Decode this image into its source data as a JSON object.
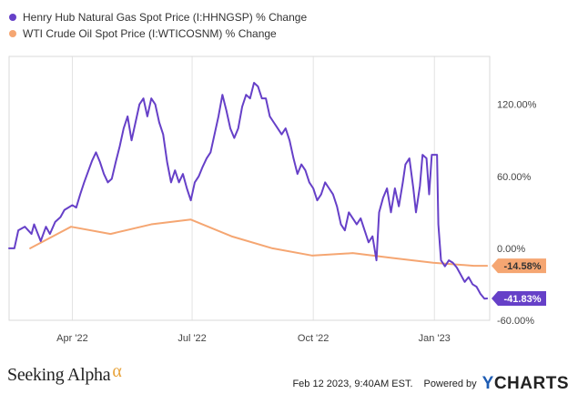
{
  "chart_data": {
    "type": "line",
    "x_type": "date",
    "xlim": [
      "2022-02-12",
      "2023-02-12"
    ],
    "ylim": [
      -60,
      160
    ],
    "y_unit": "%",
    "grid": "vertical",
    "y_ticks": [
      {
        "value": 120,
        "label": "120.00%"
      },
      {
        "value": 60,
        "label": "60.00%"
      },
      {
        "value": 0,
        "label": "0.00%"
      },
      {
        "value": -60,
        "label": "-60.00%"
      }
    ],
    "x_ticks": [
      {
        "date": "2022-04-01",
        "label": "Apr '22"
      },
      {
        "date": "2022-07-01",
        "label": "Jul '22"
      },
      {
        "date": "2022-10-01",
        "label": "Oct '22"
      },
      {
        "date": "2023-01-01",
        "label": "Jan '23"
      }
    ],
    "series": [
      {
        "name": "Henry Hub Natural Gas Spot Price (I:HHNGSP) % Change",
        "color": "#6640c8",
        "end_label": "-41.83%",
        "points": [
          [
            "2022-02-12",
            0
          ],
          [
            "2022-02-16",
            0
          ],
          [
            "2022-02-19",
            15
          ],
          [
            "2022-02-24",
            18
          ],
          [
            "2022-03-01",
            12
          ],
          [
            "2022-03-03",
            20
          ],
          [
            "2022-03-08",
            6
          ],
          [
            "2022-03-12",
            18
          ],
          [
            "2022-03-15",
            12
          ],
          [
            "2022-03-19",
            22
          ],
          [
            "2022-03-23",
            26
          ],
          [
            "2022-03-26",
            32
          ],
          [
            "2022-03-29",
            34
          ],
          [
            "2022-04-01",
            36
          ],
          [
            "2022-04-04",
            34
          ],
          [
            "2022-04-07",
            45
          ],
          [
            "2022-04-10",
            55
          ],
          [
            "2022-04-13",
            64
          ],
          [
            "2022-04-16",
            73
          ],
          [
            "2022-04-19",
            80
          ],
          [
            "2022-04-22",
            72
          ],
          [
            "2022-04-25",
            62
          ],
          [
            "2022-04-28",
            55
          ],
          [
            "2022-05-01",
            58
          ],
          [
            "2022-05-04",
            72
          ],
          [
            "2022-05-07",
            85
          ],
          [
            "2022-05-10",
            100
          ],
          [
            "2022-05-13",
            110
          ],
          [
            "2022-05-16",
            90
          ],
          [
            "2022-05-19",
            105
          ],
          [
            "2022-05-22",
            120
          ],
          [
            "2022-05-25",
            125
          ],
          [
            "2022-05-28",
            110
          ],
          [
            "2022-05-31",
            125
          ],
          [
            "2022-06-03",
            120
          ],
          [
            "2022-06-06",
            105
          ],
          [
            "2022-06-09",
            95
          ],
          [
            "2022-06-12",
            72
          ],
          [
            "2022-06-15",
            55
          ],
          [
            "2022-06-18",
            65
          ],
          [
            "2022-06-21",
            55
          ],
          [
            "2022-06-24",
            62
          ],
          [
            "2022-06-27",
            50
          ],
          [
            "2022-06-30",
            40
          ],
          [
            "2022-07-03",
            55
          ],
          [
            "2022-07-06",
            60
          ],
          [
            "2022-07-09",
            68
          ],
          [
            "2022-07-12",
            75
          ],
          [
            "2022-07-15",
            80
          ],
          [
            "2022-07-18",
            95
          ],
          [
            "2022-07-21",
            110
          ],
          [
            "2022-07-24",
            128
          ],
          [
            "2022-07-27",
            115
          ],
          [
            "2022-07-30",
            100
          ],
          [
            "2022-08-02",
            92
          ],
          [
            "2022-08-05",
            100
          ],
          [
            "2022-08-08",
            118
          ],
          [
            "2022-08-11",
            128
          ],
          [
            "2022-08-14",
            125
          ],
          [
            "2022-08-17",
            138
          ],
          [
            "2022-08-20",
            135
          ],
          [
            "2022-08-23",
            125
          ],
          [
            "2022-08-26",
            125
          ],
          [
            "2022-08-29",
            110
          ],
          [
            "2022-09-01",
            105
          ],
          [
            "2022-09-04",
            100
          ],
          [
            "2022-09-07",
            95
          ],
          [
            "2022-09-10",
            100
          ],
          [
            "2022-09-13",
            90
          ],
          [
            "2022-09-16",
            75
          ],
          [
            "2022-09-19",
            62
          ],
          [
            "2022-09-22",
            70
          ],
          [
            "2022-09-25",
            65
          ],
          [
            "2022-09-28",
            55
          ],
          [
            "2022-10-01",
            50
          ],
          [
            "2022-10-04",
            40
          ],
          [
            "2022-10-07",
            45
          ],
          [
            "2022-10-10",
            55
          ],
          [
            "2022-10-13",
            50
          ],
          [
            "2022-10-16",
            45
          ],
          [
            "2022-10-19",
            35
          ],
          [
            "2022-10-22",
            20
          ],
          [
            "2022-10-25",
            15
          ],
          [
            "2022-10-28",
            30
          ],
          [
            "2022-10-31",
            25
          ],
          [
            "2022-11-03",
            20
          ],
          [
            "2022-11-06",
            25
          ],
          [
            "2022-11-09",
            15
          ],
          [
            "2022-11-12",
            5
          ],
          [
            "2022-11-15",
            10
          ],
          [
            "2022-11-18",
            -10
          ],
          [
            "2022-11-20",
            30
          ],
          [
            "2022-11-23",
            42
          ],
          [
            "2022-11-26",
            50
          ],
          [
            "2022-11-29",
            30
          ],
          [
            "2022-12-02",
            50
          ],
          [
            "2022-12-05",
            35
          ],
          [
            "2022-12-08",
            55
          ],
          [
            "2022-12-10",
            70
          ],
          [
            "2022-12-13",
            75
          ],
          [
            "2022-12-16",
            50
          ],
          [
            "2022-12-18",
            30
          ],
          [
            "2022-12-21",
            52
          ],
          [
            "2022-12-23",
            78
          ],
          [
            "2022-12-26",
            75
          ],
          [
            "2022-12-28",
            45
          ],
          [
            "2022-12-30",
            78
          ],
          [
            "2023-01-01",
            78
          ],
          [
            "2023-01-03",
            78
          ],
          [
            "2023-01-04",
            20
          ],
          [
            "2023-01-06",
            -10
          ],
          [
            "2023-01-09",
            -15
          ],
          [
            "2023-01-12",
            -10
          ],
          [
            "2023-01-15",
            -12
          ],
          [
            "2023-01-18",
            -16
          ],
          [
            "2023-01-21",
            -22
          ],
          [
            "2023-01-24",
            -28
          ],
          [
            "2023-01-27",
            -24
          ],
          [
            "2023-01-30",
            -30
          ],
          [
            "2023-02-02",
            -32
          ],
          [
            "2023-02-05",
            -38
          ],
          [
            "2023-02-08",
            -42
          ],
          [
            "2023-02-10",
            -41.83
          ]
        ]
      },
      {
        "name": "WTI Crude Oil Spot Price (I:WTICOSNM) % Change",
        "color": "#f5a672",
        "end_label": "-14.58%",
        "points": [
          [
            "2022-02-28",
            0
          ],
          [
            "2022-03-31",
            18
          ],
          [
            "2022-04-30",
            12
          ],
          [
            "2022-05-31",
            20
          ],
          [
            "2022-06-30",
            24
          ],
          [
            "2022-07-31",
            10
          ],
          [
            "2022-08-31",
            0
          ],
          [
            "2022-09-30",
            -6
          ],
          [
            "2022-10-31",
            -4
          ],
          [
            "2022-11-30",
            -8
          ],
          [
            "2022-12-31",
            -12
          ],
          [
            "2023-01-31",
            -14.58
          ],
          [
            "2023-02-10",
            -14.58
          ]
        ]
      }
    ]
  },
  "footer": {
    "brand": "Seeking Alpha",
    "brand_symbol": "α",
    "timestamp": "Feb 12 2023, 9:40AM EST.",
    "powered_by": "Powered by",
    "provider": "YCHARTS",
    "provider_accent_color": "#1e5cb3"
  }
}
